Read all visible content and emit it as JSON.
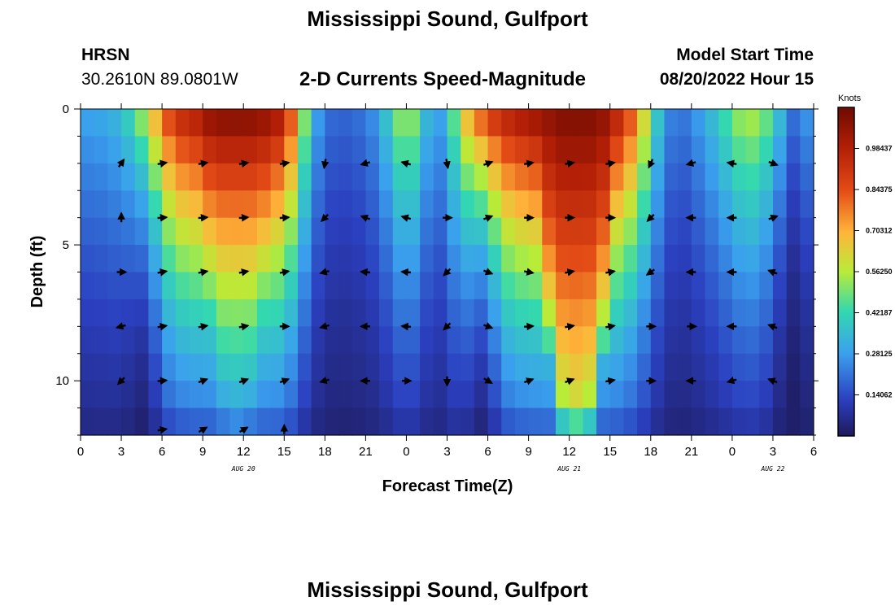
{
  "page": {
    "title": "Mississippi Sound, Gulfport",
    "station_id": "HRSN",
    "station_coords": "30.2610N  89.0801W",
    "plot_title": "2-D Currents Speed-Magnitude",
    "model_start_label": "Model Start Time",
    "model_start_value": "08/20/2022 Hour 15",
    "footer_title": "Mississippi Sound, Gulfport"
  },
  "chart_data": {
    "type": "heatmap",
    "xlabel": "Forecast Time(Z)",
    "ylabel": "Depth (ft)",
    "x_ticks": [
      "0",
      "3",
      "6",
      "9",
      "12",
      "15",
      "18",
      "21",
      "0",
      "3",
      "6",
      "9",
      "12",
      "15",
      "18",
      "21",
      "0",
      "3",
      "6"
    ],
    "x_range_hours": [
      0,
      54
    ],
    "date_labels": [
      {
        "label": "AUG 20",
        "hour": 12
      },
      {
        "label": "AUG 21",
        "hour": 36
      },
      {
        "label": "AUG 22",
        "hour": 51
      }
    ],
    "y_ticks": [
      "0",
      "5",
      "10"
    ],
    "y_range_ft": [
      0,
      12
    ],
    "y_inverted": true,
    "colorbar": {
      "title": "Knots",
      "range": [
        0,
        1.125
      ],
      "tick_values": [
        0.140625,
        0.28125,
        0.421875,
        0.5625,
        0.703125,
        0.84375,
        0.984375
      ],
      "tick_labels": [
        "0.14062",
        "0.28125",
        "0.42187",
        "0.56250",
        "0.70312",
        "0.84375",
        "0.98437"
      ],
      "colormap": "jet"
    },
    "speed_knots": {
      "hours": [
        0,
        1,
        2,
        3,
        4,
        5,
        6,
        7,
        8,
        9,
        10,
        11,
        12,
        13,
        14,
        15,
        16,
        17,
        18,
        19,
        20,
        21,
        22,
        23,
        24,
        25,
        26,
        27,
        28,
        29,
        30,
        31,
        32,
        33,
        34,
        35,
        36,
        37,
        38,
        39,
        40,
        41,
        42,
        43,
        44,
        45,
        46,
        47,
        48,
        49,
        50,
        51,
        52,
        53,
        54
      ],
      "depths_ft": [
        0,
        2,
        4,
        6,
        8,
        10,
        12
      ],
      "surface": [
        0.3,
        0.3,
        0.32,
        0.36,
        0.48,
        0.62,
        0.82,
        0.95,
        1.0,
        1.02,
        1.05,
        1.07,
        1.08,
        1.07,
        1.06,
        1.02,
        0.7,
        0.35,
        0.22,
        0.18,
        0.2,
        0.22,
        0.3,
        0.45,
        0.6,
        0.45,
        0.25,
        0.35,
        0.62,
        0.8,
        0.92,
        0.98,
        1.02,
        1.05,
        1.08,
        1.1,
        1.1,
        1.1,
        1.08,
        1.04,
        0.95,
        0.78,
        0.5,
        0.28,
        0.2,
        0.25,
        0.32,
        0.4,
        0.5,
        0.58,
        0.55,
        0.45,
        0.28,
        0.15,
        0.4
      ],
      "center_hour": [
        11.5,
        36.5
      ],
      "half_width_surface_h": [
        5.5,
        5.0
      ],
      "half_width_bottom_h": [
        1.6,
        1.4
      ],
      "penetration_ft": [
        12,
        10.5
      ],
      "low_hour": [
        4.5,
        29.5,
        52.5
      ]
    },
    "vectors": {
      "times_h": [
        3,
        6,
        9,
        12,
        15,
        18,
        21,
        24,
        27,
        30,
        33,
        36,
        39,
        42,
        45,
        48,
        51
      ],
      "depths_ft": [
        2,
        4,
        6,
        8,
        10
      ],
      "angles_deg": [
        [
          -55,
          -10,
          -10,
          -10,
          -10,
          100,
          165,
          -165,
          80,
          -20,
          -10,
          -10,
          -10,
          115,
          165,
          -170,
          20
        ],
        [
          -90,
          -5,
          -5,
          -5,
          -5,
          135,
          -160,
          -165,
          0,
          -20,
          0,
          0,
          0,
          135,
          180,
          180,
          -20
        ],
        [
          0,
          -10,
          -10,
          -10,
          -10,
          165,
          -175,
          -175,
          135,
          20,
          10,
          -10,
          -10,
          145,
          180,
          180,
          -160
        ],
        [
          165,
          -10,
          -10,
          -10,
          0,
          165,
          180,
          -175,
          135,
          20,
          -5,
          -10,
          -10,
          0,
          0,
          180,
          -160
        ],
        [
          135,
          -5,
          -20,
          -20,
          -20,
          165,
          180,
          0,
          90,
          30,
          -20,
          -20,
          -10,
          0,
          180,
          165,
          -160
        ]
      ],
      "bottom_times_h": [
        6,
        9,
        12,
        15
      ],
      "bottom_angles_deg": [
        -10,
        -30,
        -30,
        -90
      ]
    }
  }
}
